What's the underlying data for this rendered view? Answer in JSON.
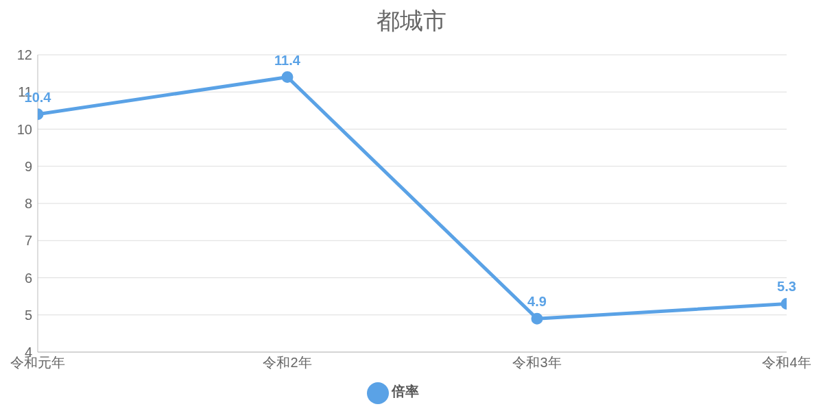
{
  "chart_data": {
    "type": "line",
    "title": "都城市",
    "categories": [
      "令和元年",
      "令和2年",
      "令和3年",
      "令和4年"
    ],
    "series": [
      {
        "name": "倍率",
        "color": "#5aa2e6",
        "values": [
          10.4,
          11.4,
          4.9,
          5.3
        ]
      }
    ],
    "ylim": [
      4,
      12
    ],
    "yticks": [
      4,
      5,
      6,
      7,
      8,
      9,
      10,
      11,
      12
    ],
    "grid": "y",
    "legend": "bottom",
    "marker": "circle",
    "line_style": "solid",
    "data_labels": true
  }
}
